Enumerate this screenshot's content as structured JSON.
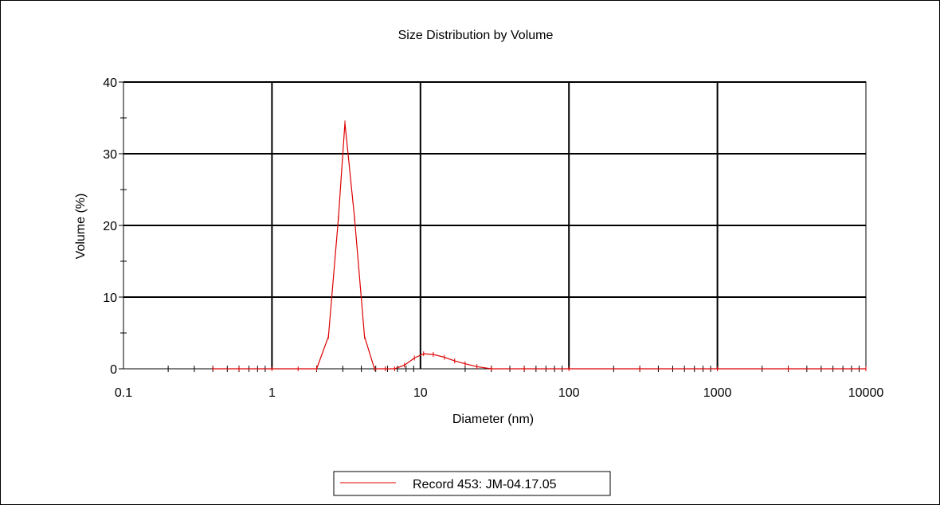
{
  "chart_data": {
    "type": "line",
    "title": "Size Distribution by Volume",
    "xlabel": "Diameter (nm)",
    "ylabel": "Volume (%)",
    "x_scale": "log",
    "xlim": [
      0.1,
      10000
    ],
    "ylim": [
      0,
      40
    ],
    "x_ticks": [
      0.1,
      1,
      10,
      100,
      1000,
      10000
    ],
    "x_tick_labels": [
      "0.1",
      "1",
      "10",
      "100",
      "1000",
      "10000"
    ],
    "y_ticks": [
      0,
      10,
      20,
      30,
      40
    ],
    "y_tick_labels": [
      "0",
      "10",
      "20",
      "30",
      "40"
    ],
    "grid": true,
    "legend_position": "bottom-center",
    "series": [
      {
        "name": "Record 453: JM-04.17.05",
        "color": "#dd0000",
        "x": [
          0.4,
          0.6,
          1,
          1.5,
          2,
          2.4,
          2.8,
          3.1,
          3.6,
          4.2,
          4.9,
          5.8,
          6.7,
          7.8,
          9.1,
          10.5,
          12.2,
          14.5,
          17,
          20,
          24,
          30,
          50,
          100,
          300,
          1000,
          3000,
          10000
        ],
        "y": [
          0,
          0,
          0,
          0,
          0,
          4.5,
          21,
          34.3,
          21,
          4.5,
          0,
          0,
          0,
          0.5,
          1.5,
          2.1,
          2.0,
          1.6,
          1.1,
          0.7,
          0.3,
          0,
          0,
          0,
          0,
          0,
          0,
          0
        ]
      }
    ]
  }
}
